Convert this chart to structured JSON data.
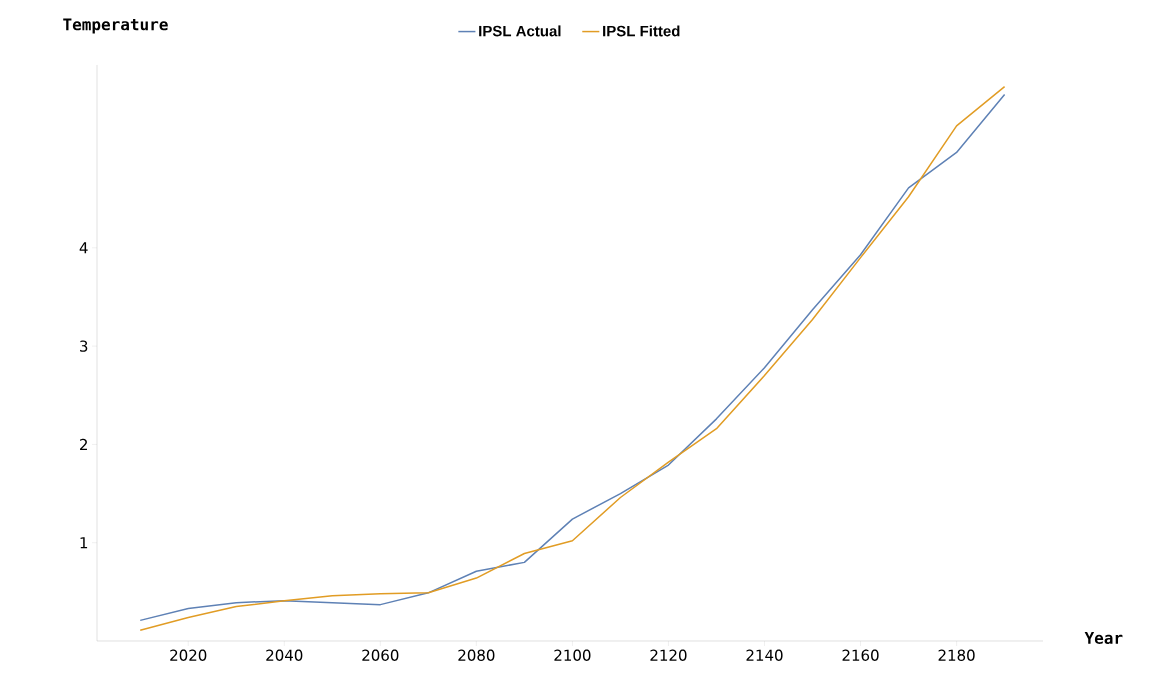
{
  "chart_data": {
    "type": "line",
    "xlabel": "Year",
    "ylabel": "Temperature",
    "x": [
      2010,
      2020,
      2030,
      2040,
      2050,
      2060,
      2070,
      2080,
      2090,
      2100,
      2110,
      2120,
      2130,
      2140,
      2150,
      2160,
      2170,
      2180,
      2190
    ],
    "series": [
      {
        "name": "IPSL Actual",
        "color": "#5e81b5",
        "values": [
          0.21,
          0.33,
          0.39,
          0.41,
          0.39,
          0.37,
          0.49,
          0.71,
          0.8,
          1.24,
          1.5,
          1.79,
          2.26,
          2.78,
          3.37,
          3.93,
          4.61,
          4.97,
          5.56
        ]
      },
      {
        "name": "IPSL Fitted",
        "color": "#e19c24",
        "values": [
          0.11,
          0.24,
          0.35,
          0.41,
          0.46,
          0.48,
          0.49,
          0.64,
          0.89,
          1.02,
          1.46,
          1.82,
          2.16,
          2.7,
          3.27,
          3.9,
          4.52,
          5.24,
          5.64
        ]
      }
    ],
    "xlim": [
      2001,
      2198
    ],
    "ylim": [
      0,
      5.86
    ],
    "xticks": [
      2020,
      2040,
      2060,
      2080,
      2100,
      2120,
      2140,
      2160,
      2180
    ],
    "yticks": [
      1,
      2,
      3,
      4
    ],
    "grid": false,
    "legend": "top",
    "marker": "none",
    "line_style": "solid"
  }
}
